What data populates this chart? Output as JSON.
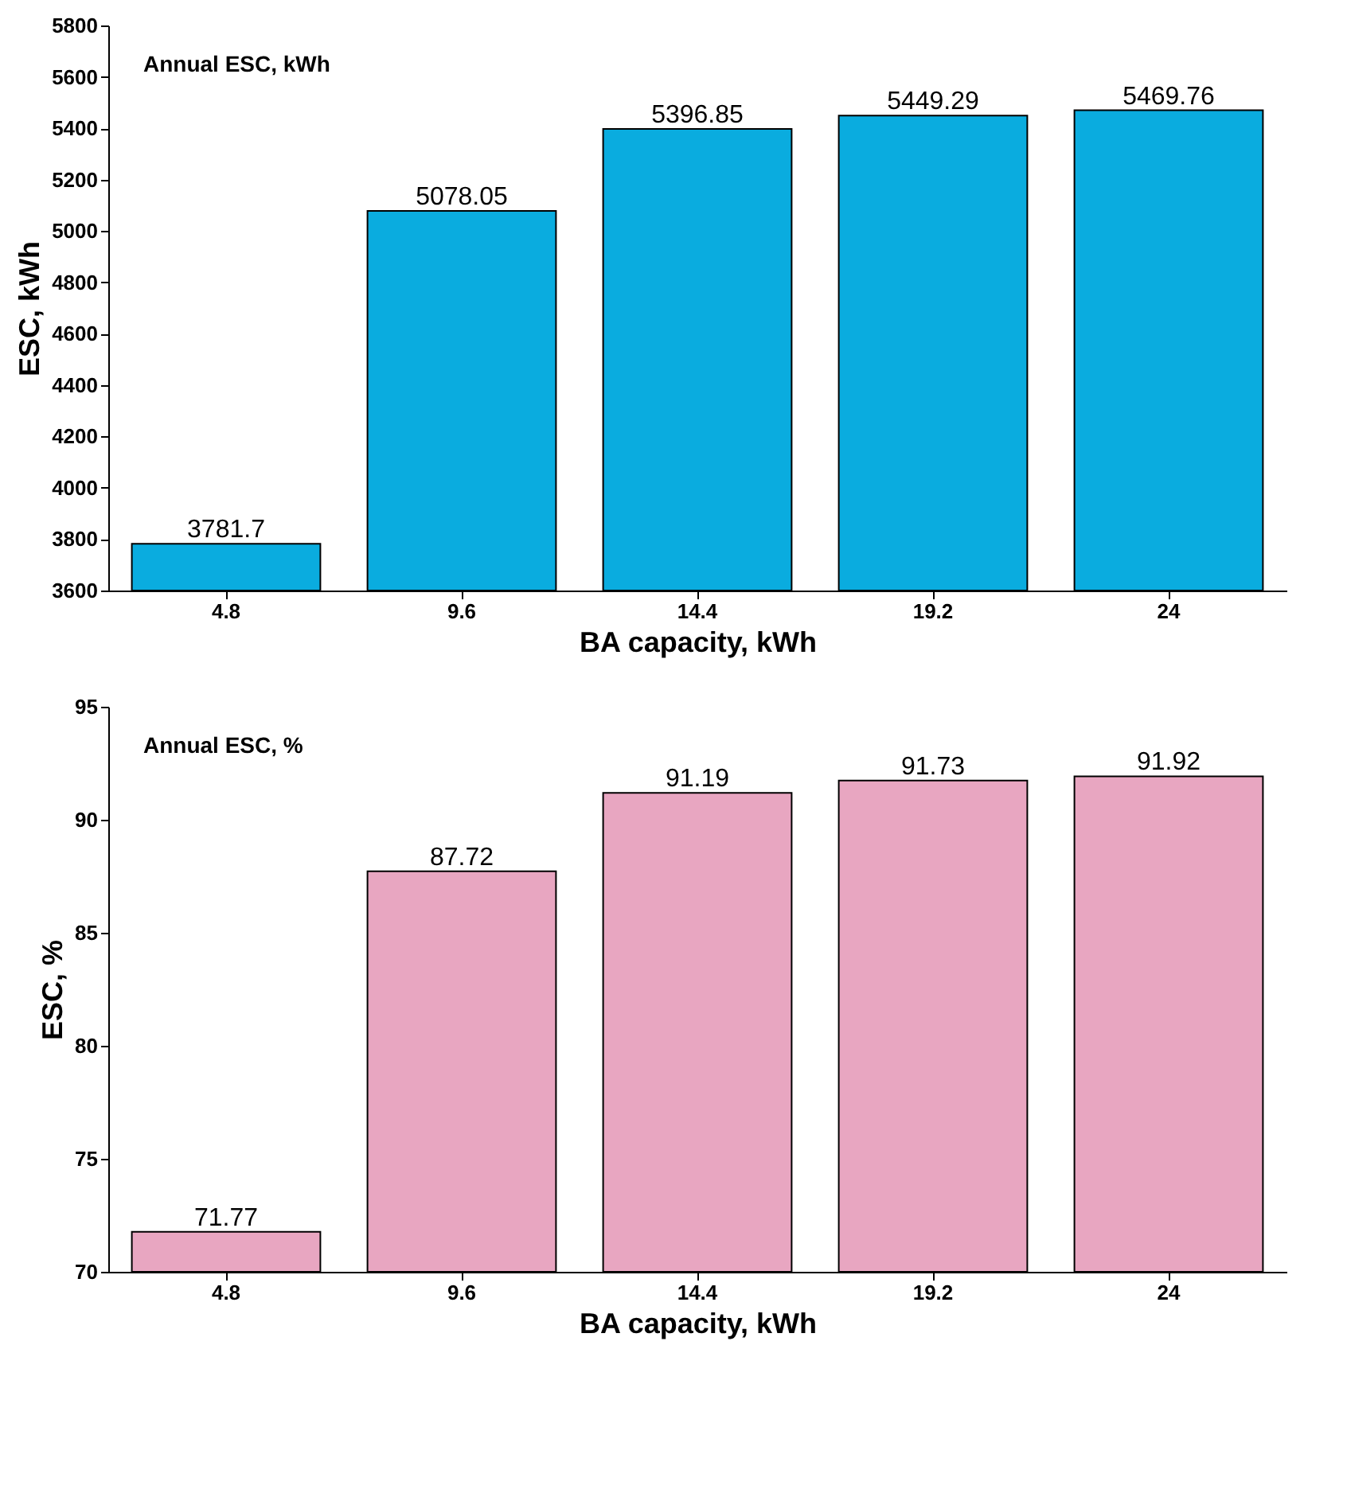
{
  "chart_data": [
    {
      "type": "bar",
      "annotations": [
        "Annual ESC, kWh"
      ],
      "xlabel": "BA capacity, kWh",
      "ylabel": "ESC, kWh",
      "categories": [
        "4.8",
        "9.6",
        "14.4",
        "19.2",
        "24"
      ],
      "values": [
        3781.7,
        5078.05,
        5396.85,
        5449.29,
        5469.76
      ],
      "color": "#0aacdf",
      "ylim": [
        3600,
        5800
      ],
      "yticks": [
        3600,
        3800,
        4000,
        4200,
        4400,
        4600,
        4800,
        5000,
        5200,
        5400,
        5600,
        5800
      ],
      "data_labels": true,
      "grid": false
    },
    {
      "type": "bar",
      "annotations": [
        "Annual ESC, %"
      ],
      "xlabel": "BA capacity, kWh",
      "ylabel": "ESC, %",
      "categories": [
        "4.8",
        "9.6",
        "14.4",
        "19.2",
        "24"
      ],
      "values": [
        71.77,
        87.72,
        91.19,
        91.73,
        91.92
      ],
      "color": "#e8a6c1",
      "ylim": [
        70,
        95
      ],
      "yticks": [
        70,
        75,
        80,
        85,
        90,
        95
      ],
      "data_labels": true,
      "grid": false
    }
  ]
}
